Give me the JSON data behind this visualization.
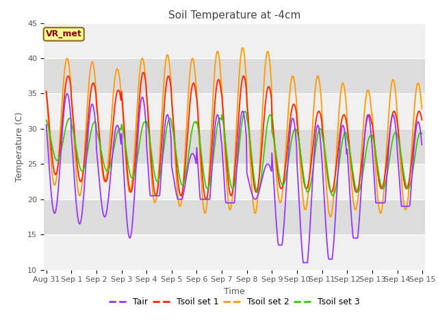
{
  "title": "Soil Temperature at -4cm",
  "xlabel": "Time",
  "ylabel": "Temperature (C)",
  "ylim": [
    10,
    45
  ],
  "colors": {
    "Tair": "#9933FF",
    "Tsoil set 1": "#FF2200",
    "Tsoil set 2": "#FF9900",
    "Tsoil set 3": "#33CC00"
  },
  "legend_labels": [
    "Tair",
    "Tsoil set 1",
    "Tsoil set 2",
    "Tsoil set 3"
  ],
  "xtick_labels": [
    "Aug 31",
    "Sep 1",
    "Sep 2",
    "Sep 3",
    "Sep 4",
    "Sep 5",
    "Sep 6",
    "Sep 7",
    "Sep 8",
    "Sep 9",
    "Sep 10",
    "Sep 11",
    "Sep 12",
    "Sep 13",
    "Sep 14",
    "Sep 15"
  ],
  "annotation_text": "VR_met",
  "bg_color": "#E8E8E8",
  "title_fontsize": 11,
  "axis_label_fontsize": 9,
  "tick_fontsize": 8,
  "legend_fontsize": 9,
  "tair_day_params": [
    {
      "mean": 26.5,
      "amp": 8.5,
      "phase": 0.58,
      "min_clip": 13.5
    },
    {
      "mean": 25.0,
      "amp": 8.5,
      "phase": 0.58,
      "min_clip": 13.0
    },
    {
      "mean": 24.0,
      "amp": 6.5,
      "phase": 0.58,
      "min_clip": 12.0
    },
    {
      "mean": 24.5,
      "amp": 10.0,
      "phase": 0.58,
      "min_clip": 14.0
    },
    {
      "mean": 23.5,
      "amp": 8.5,
      "phase": 0.58,
      "min_clip": 20.5
    },
    {
      "mean": 23.0,
      "amp": 3.5,
      "phase": 0.58,
      "min_clip": 20.0
    },
    {
      "mean": 23.0,
      "amp": 9.0,
      "phase": 0.58,
      "min_clip": 20.0
    },
    {
      "mean": 23.5,
      "amp": 9.0,
      "phase": 0.58,
      "min_clip": 19.5
    },
    {
      "mean": 22.5,
      "amp": 2.5,
      "phase": 0.58,
      "min_clip": 19.5
    },
    {
      "mean": 22.0,
      "amp": 9.5,
      "phase": 0.58,
      "min_clip": 13.5
    },
    {
      "mean": 20.0,
      "amp": 10.5,
      "phase": 0.58,
      "min_clip": 11.0
    },
    {
      "mean": 20.5,
      "amp": 10.0,
      "phase": 0.58,
      "min_clip": 11.5
    },
    {
      "mean": 22.5,
      "amp": 9.5,
      "phase": 0.58,
      "min_clip": 14.5
    },
    {
      "mean": 23.0,
      "amp": 9.0,
      "phase": 0.58,
      "min_clip": 19.5
    },
    {
      "mean": 23.0,
      "amp": 8.0,
      "phase": 0.58,
      "min_clip": 19.0
    }
  ],
  "tsoil1_day_params": [
    {
      "mean": 30.5,
      "amp": 7.0,
      "phase": 0.62
    },
    {
      "mean": 29.5,
      "amp": 7.0,
      "phase": 0.62
    },
    {
      "mean": 29.0,
      "amp": 6.5,
      "phase": 0.62
    },
    {
      "mean": 29.5,
      "amp": 8.5,
      "phase": 0.62
    },
    {
      "mean": 29.0,
      "amp": 8.5,
      "phase": 0.62
    },
    {
      "mean": 28.5,
      "amp": 8.0,
      "phase": 0.62
    },
    {
      "mean": 28.5,
      "amp": 8.5,
      "phase": 0.62
    },
    {
      "mean": 29.0,
      "amp": 8.5,
      "phase": 0.62
    },
    {
      "mean": 28.5,
      "amp": 7.5,
      "phase": 0.62
    },
    {
      "mean": 27.5,
      "amp": 6.0,
      "phase": 0.62
    },
    {
      "mean": 27.0,
      "amp": 5.5,
      "phase": 0.62
    },
    {
      "mean": 26.5,
      "amp": 5.5,
      "phase": 0.62
    },
    {
      "mean": 26.5,
      "amp": 5.5,
      "phase": 0.62
    },
    {
      "mean": 27.0,
      "amp": 5.5,
      "phase": 0.62
    },
    {
      "mean": 27.0,
      "amp": 5.5,
      "phase": 0.62
    }
  ],
  "tsoil2_day_params": [
    {
      "mean": 31.0,
      "amp": 9.0,
      "phase": 0.58
    },
    {
      "mean": 30.0,
      "amp": 9.5,
      "phase": 0.58
    },
    {
      "mean": 30.5,
      "amp": 8.0,
      "phase": 0.58
    },
    {
      "mean": 30.5,
      "amp": 9.5,
      "phase": 0.58
    },
    {
      "mean": 30.0,
      "amp": 10.5,
      "phase": 0.58
    },
    {
      "mean": 29.5,
      "amp": 10.5,
      "phase": 0.58
    },
    {
      "mean": 29.5,
      "amp": 11.5,
      "phase": 0.58
    },
    {
      "mean": 30.0,
      "amp": 11.5,
      "phase": 0.58
    },
    {
      "mean": 29.5,
      "amp": 11.5,
      "phase": 0.58
    },
    {
      "mean": 28.5,
      "amp": 9.0,
      "phase": 0.58
    },
    {
      "mean": 28.0,
      "amp": 9.5,
      "phase": 0.58
    },
    {
      "mean": 27.0,
      "amp": 9.5,
      "phase": 0.58
    },
    {
      "mean": 27.0,
      "amp": 8.5,
      "phase": 0.58
    },
    {
      "mean": 27.5,
      "amp": 9.5,
      "phase": 0.58
    },
    {
      "mean": 27.5,
      "amp": 9.0,
      "phase": 0.58
    }
  ],
  "tsoil3_day_params": [
    {
      "mean": 28.5,
      "amp": 3.0,
      "phase": 0.68
    },
    {
      "mean": 27.5,
      "amp": 3.5,
      "phase": 0.68
    },
    {
      "mean": 27.0,
      "amp": 3.0,
      "phase": 0.68
    },
    {
      "mean": 27.0,
      "amp": 4.0,
      "phase": 0.68
    },
    {
      "mean": 27.0,
      "amp": 4.5,
      "phase": 0.68
    },
    {
      "mean": 26.5,
      "amp": 4.5,
      "phase": 0.68
    },
    {
      "mean": 26.5,
      "amp": 5.0,
      "phase": 0.68
    },
    {
      "mean": 27.0,
      "amp": 5.5,
      "phase": 0.68
    },
    {
      "mean": 26.5,
      "amp": 5.5,
      "phase": 0.68
    },
    {
      "mean": 26.0,
      "amp": 4.0,
      "phase": 0.68
    },
    {
      "mean": 25.5,
      "amp": 4.5,
      "phase": 0.68
    },
    {
      "mean": 25.0,
      "amp": 4.5,
      "phase": 0.68
    },
    {
      "mean": 25.0,
      "amp": 4.0,
      "phase": 0.68
    },
    {
      "mean": 25.5,
      "amp": 4.0,
      "phase": 0.68
    },
    {
      "mean": 25.5,
      "amp": 4.0,
      "phase": 0.68
    }
  ]
}
